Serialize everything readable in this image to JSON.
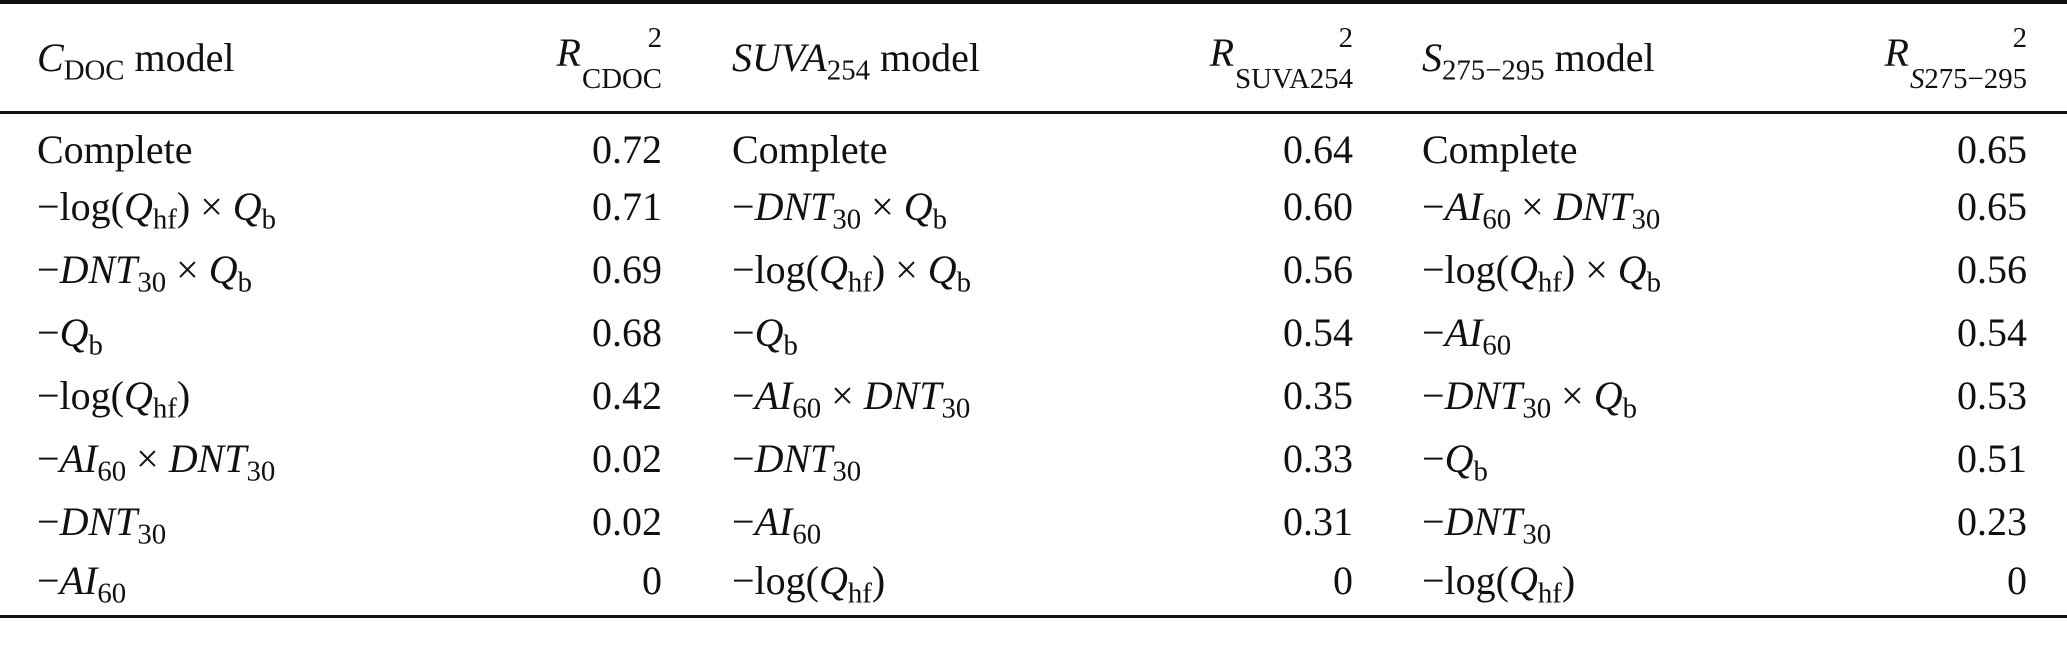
{
  "table": {
    "header": [
      {
        "col": "c1",
        "parts": [
          {
            "t": "C",
            "style": "i"
          },
          {
            "t": "DOC",
            "style": "sub"
          },
          {
            "t": " model"
          }
        ]
      },
      {
        "col": "c2",
        "r2": true,
        "parts": [
          {
            "t": "R",
            "style": "i"
          }
        ],
        "sup": "2",
        "sub": [
          {
            "t": "CDOC"
          }
        ]
      },
      {
        "col": "c3",
        "parts": [
          {
            "t": "SUVA",
            "style": "i"
          },
          {
            "t": "254",
            "style": "sub"
          },
          {
            "t": " model"
          }
        ]
      },
      {
        "col": "c4",
        "r2": true,
        "parts": [
          {
            "t": "R",
            "style": "i"
          }
        ],
        "sup": "2",
        "sub": [
          {
            "t": "SUVA254"
          }
        ]
      },
      {
        "col": "c5",
        "parts": [
          {
            "t": "S",
            "style": "i"
          },
          {
            "t": "275−295",
            "style": "sub"
          },
          {
            "t": " model"
          }
        ]
      },
      {
        "col": "c6",
        "r2": true,
        "parts": [
          {
            "t": "R",
            "style": "i"
          }
        ],
        "sup": "2",
        "sub": [
          {
            "t": "S",
            "style": "i"
          },
          {
            "t": "275−295"
          }
        ]
      }
    ],
    "rows": [
      [
        [
          {
            "t": "Complete"
          }
        ],
        "0.72",
        [
          {
            "t": "Complete"
          }
        ],
        "0.64",
        [
          {
            "t": "Complete"
          }
        ],
        "0.65"
      ],
      [
        [
          {
            "t": "−log("
          },
          {
            "t": "Q",
            "style": "i"
          },
          {
            "t": "hf",
            "style": "sub"
          },
          {
            "t": ") × "
          },
          {
            "t": "Q",
            "style": "i"
          },
          {
            "t": "b",
            "style": "sub"
          }
        ],
        "0.71",
        [
          {
            "t": "−"
          },
          {
            "t": "DNT",
            "style": "i"
          },
          {
            "t": "30",
            "style": "sub"
          },
          {
            "t": " × "
          },
          {
            "t": "Q",
            "style": "i"
          },
          {
            "t": "b",
            "style": "sub"
          }
        ],
        "0.60",
        [
          {
            "t": "−"
          },
          {
            "t": "AI",
            "style": "i"
          },
          {
            "t": "60",
            "style": "sub"
          },
          {
            "t": " × "
          },
          {
            "t": "DNT",
            "style": "i"
          },
          {
            "t": "30",
            "style": "sub"
          }
        ],
        "0.65"
      ],
      [
        [
          {
            "t": "−"
          },
          {
            "t": "DNT",
            "style": "i"
          },
          {
            "t": "30",
            "style": "sub"
          },
          {
            "t": " × "
          },
          {
            "t": "Q",
            "style": "i"
          },
          {
            "t": "b",
            "style": "sub"
          }
        ],
        "0.69",
        [
          {
            "t": "−log("
          },
          {
            "t": "Q",
            "style": "i"
          },
          {
            "t": "hf",
            "style": "sub"
          },
          {
            "t": ") × "
          },
          {
            "t": "Q",
            "style": "i"
          },
          {
            "t": "b",
            "style": "sub"
          }
        ],
        "0.56",
        [
          {
            "t": "−log("
          },
          {
            "t": "Q",
            "style": "i"
          },
          {
            "t": "hf",
            "style": "sub"
          },
          {
            "t": ") × "
          },
          {
            "t": "Q",
            "style": "i"
          },
          {
            "t": "b",
            "style": "sub"
          }
        ],
        "0.56"
      ],
      [
        [
          {
            "t": "−"
          },
          {
            "t": "Q",
            "style": "i"
          },
          {
            "t": "b",
            "style": "sub"
          }
        ],
        "0.68",
        [
          {
            "t": "−"
          },
          {
            "t": "Q",
            "style": "i"
          },
          {
            "t": "b",
            "style": "sub"
          }
        ],
        "0.54",
        [
          {
            "t": "−"
          },
          {
            "t": "AI",
            "style": "i"
          },
          {
            "t": "60",
            "style": "sub"
          }
        ],
        "0.54"
      ],
      [
        [
          {
            "t": "−log("
          },
          {
            "t": "Q",
            "style": "i"
          },
          {
            "t": "hf",
            "style": "sub"
          },
          {
            "t": ")"
          }
        ],
        "0.42",
        [
          {
            "t": "−"
          },
          {
            "t": "AI",
            "style": "i"
          },
          {
            "t": "60",
            "style": "sub"
          },
          {
            "t": " × "
          },
          {
            "t": "DNT",
            "style": "i"
          },
          {
            "t": "30",
            "style": "sub"
          }
        ],
        "0.35",
        [
          {
            "t": "−"
          },
          {
            "t": "DNT",
            "style": "i"
          },
          {
            "t": "30",
            "style": "sub"
          },
          {
            "t": " × "
          },
          {
            "t": "Q",
            "style": "i"
          },
          {
            "t": "b",
            "style": "sub"
          }
        ],
        "0.53"
      ],
      [
        [
          {
            "t": "−"
          },
          {
            "t": "AI",
            "style": "i"
          },
          {
            "t": "60",
            "style": "sub"
          },
          {
            "t": " × "
          },
          {
            "t": "DNT",
            "style": "i"
          },
          {
            "t": "30",
            "style": "sub"
          }
        ],
        "0.02",
        [
          {
            "t": "−"
          },
          {
            "t": "DNT",
            "style": "i"
          },
          {
            "t": "30",
            "style": "sub"
          }
        ],
        "0.33",
        [
          {
            "t": "−"
          },
          {
            "t": "Q",
            "style": "i"
          },
          {
            "t": "b",
            "style": "sub"
          }
        ],
        "0.51"
      ],
      [
        [
          {
            "t": "−"
          },
          {
            "t": "DNT",
            "style": "i"
          },
          {
            "t": "30",
            "style": "sub"
          }
        ],
        "0.02",
        [
          {
            "t": "−"
          },
          {
            "t": "AI",
            "style": "i"
          },
          {
            "t": "60",
            "style": "sub"
          }
        ],
        "0.31",
        [
          {
            "t": "−"
          },
          {
            "t": "DNT",
            "style": "i"
          },
          {
            "t": "30",
            "style": "sub"
          }
        ],
        "0.23"
      ],
      [
        [
          {
            "t": "−"
          },
          {
            "t": "AI",
            "style": "i"
          },
          {
            "t": "60",
            "style": "sub"
          }
        ],
        "0",
        [
          {
            "t": "−log("
          },
          {
            "t": "Q",
            "style": "i"
          },
          {
            "t": "hf",
            "style": "sub"
          },
          {
            "t": ")"
          }
        ],
        "0",
        [
          {
            "t": "−log("
          },
          {
            "t": "Q",
            "style": "i"
          },
          {
            "t": "hf",
            "style": "sub"
          },
          {
            "t": ")"
          }
        ],
        "0"
      ]
    ]
  }
}
